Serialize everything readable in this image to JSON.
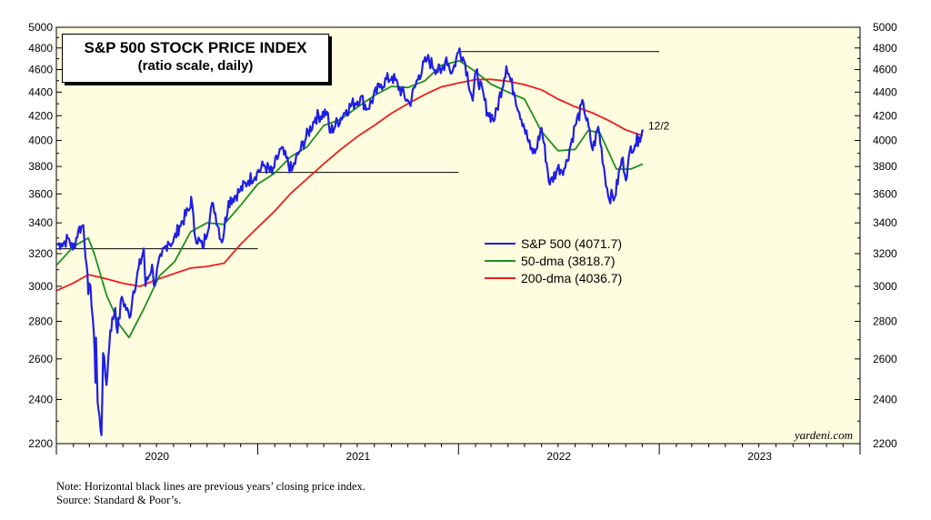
{
  "header": {
    "title": "S&P 500 STOCK PRICE INDEX",
    "subtitle": "(ratio scale, daily)"
  },
  "watermark": "yardeni.com",
  "notes": {
    "line1": "Note: Horizontal black lines are previous years’ closing price index.",
    "line2": "Source: Standard & Poor’s."
  },
  "colors": {
    "plot_background": "#fffde0",
    "sp500": "#1f1fe6",
    "dma50": "#1f8f1f",
    "dma200": "#ee1c1c",
    "reference_lines": "#000000"
  },
  "chart_data": {
    "type": "line",
    "scale": "log",
    "ylim": [
      2200,
      5000
    ],
    "yticks": [
      2200,
      2400,
      2600,
      2800,
      3000,
      3200,
      3400,
      3600,
      3800,
      4000,
      4200,
      4400,
      4600,
      4800,
      5000
    ],
    "xlim": [
      "2020-01-01",
      "2024-01-01"
    ],
    "year_labels": [
      "2020",
      "2021",
      "2022",
      "2023"
    ],
    "end_label": "12/2",
    "reference_lines": [
      {
        "value": 3230.8,
        "from": "2020-01-01",
        "to": "2021-01-01"
      },
      {
        "value": 3756.1,
        "from": "2021-01-01",
        "to": "2022-01-01"
      },
      {
        "value": 4766.2,
        "from": "2022-01-01",
        "to": "2023-01-01"
      }
    ],
    "series": [
      {
        "name": "S&P 500 (4071.7)",
        "color": "#1f1fe6",
        "points": [
          [
            "2020-01-02",
            3258
          ],
          [
            "2020-01-10",
            3265
          ],
          [
            "2020-01-24",
            3295
          ],
          [
            "2020-01-31",
            3225
          ],
          [
            "2020-02-10",
            3352
          ],
          [
            "2020-02-19",
            3386
          ],
          [
            "2020-02-25",
            3128
          ],
          [
            "2020-02-28",
            2954
          ],
          [
            "2020-03-03",
            3003
          ],
          [
            "2020-03-09",
            2747
          ],
          [
            "2020-03-12",
            2481
          ],
          [
            "2020-03-13",
            2711
          ],
          [
            "2020-03-16",
            2386
          ],
          [
            "2020-03-23",
            2237
          ],
          [
            "2020-03-26",
            2630
          ],
          [
            "2020-04-01",
            2470
          ],
          [
            "2020-04-08",
            2750
          ],
          [
            "2020-04-17",
            2875
          ],
          [
            "2020-04-21",
            2737
          ],
          [
            "2020-04-29",
            2939
          ],
          [
            "2020-05-13",
            2820
          ],
          [
            "2020-05-20",
            2972
          ],
          [
            "2020-06-08",
            3232
          ],
          [
            "2020-06-11",
            3002
          ],
          [
            "2020-06-23",
            3131
          ],
          [
            "2020-06-26",
            3009
          ],
          [
            "2020-07-10",
            3185
          ],
          [
            "2020-07-22",
            3276
          ],
          [
            "2020-07-31",
            3271
          ],
          [
            "2020-08-12",
            3380
          ],
          [
            "2020-08-31",
            3500
          ],
          [
            "2020-09-02",
            3580
          ],
          [
            "2020-09-08",
            3332
          ],
          [
            "2020-09-23",
            3237
          ],
          [
            "2020-10-12",
            3534
          ],
          [
            "2020-10-28",
            3271
          ],
          [
            "2020-11-09",
            3550
          ],
          [
            "2020-11-30",
            3622
          ],
          [
            "2020-12-15",
            3695
          ],
          [
            "2020-12-31",
            3756
          ],
          [
            "2021-01-13",
            3810
          ],
          [
            "2021-01-27",
            3750
          ],
          [
            "2021-02-12",
            3934
          ],
          [
            "2021-03-04",
            3768
          ],
          [
            "2021-03-18",
            3915
          ],
          [
            "2021-04-16",
            4185
          ],
          [
            "2021-05-07",
            4232
          ],
          [
            "2021-05-12",
            4063
          ],
          [
            "2021-06-11",
            4247
          ],
          [
            "2021-07-07",
            4358
          ],
          [
            "2021-07-19",
            4258
          ],
          [
            "2021-08-13",
            4468
          ],
          [
            "2021-09-02",
            4537
          ],
          [
            "2021-10-04",
            4300
          ],
          [
            "2021-10-21",
            4549
          ],
          [
            "2021-11-05",
            4697
          ],
          [
            "2021-11-30",
            4567
          ],
          [
            "2021-12-10",
            4712
          ],
          [
            "2021-12-20",
            4568
          ],
          [
            "2022-01-03",
            4796
          ],
          [
            "2022-01-13",
            4659
          ],
          [
            "2022-01-27",
            4326
          ],
          [
            "2022-02-02",
            4589
          ],
          [
            "2022-02-23",
            4225
          ],
          [
            "2022-03-08",
            4170
          ],
          [
            "2022-03-29",
            4631
          ],
          [
            "2022-04-12",
            4397
          ],
          [
            "2022-04-29",
            4132
          ],
          [
            "2022-05-12",
            3930
          ],
          [
            "2022-05-20",
            3901
          ],
          [
            "2022-06-01",
            4101
          ],
          [
            "2022-06-16",
            3667
          ],
          [
            "2022-06-30",
            3785
          ],
          [
            "2022-07-14",
            3790
          ],
          [
            "2022-08-01",
            4119
          ],
          [
            "2022-08-16",
            4305
          ],
          [
            "2022-09-02",
            3924
          ],
          [
            "2022-09-12",
            4110
          ],
          [
            "2022-09-30",
            3586
          ],
          [
            "2022-10-12",
            3577
          ],
          [
            "2022-10-25",
            3859
          ],
          [
            "2022-11-03",
            3720
          ],
          [
            "2022-11-10",
            3956
          ],
          [
            "2022-11-18",
            3965
          ],
          [
            "2022-11-25",
            4026
          ],
          [
            "2022-12-01",
            4076
          ],
          [
            "2022-12-02",
            4071.7
          ]
        ]
      },
      {
        "name": "50-dma (3818.7)",
        "color": "#1f8f1f",
        "points": [
          [
            "2020-01-02",
            3130
          ],
          [
            "2020-02-01",
            3245
          ],
          [
            "2020-02-28",
            3300
          ],
          [
            "2020-03-10",
            3200
          ],
          [
            "2020-04-01",
            2950
          ],
          [
            "2020-04-25",
            2780
          ],
          [
            "2020-05-12",
            2712
          ],
          [
            "2020-06-08",
            2870
          ],
          [
            "2020-07-06",
            3060
          ],
          [
            "2020-08-03",
            3150
          ],
          [
            "2020-09-01",
            3340
          ],
          [
            "2020-10-01",
            3400
          ],
          [
            "2020-11-01",
            3390
          ],
          [
            "2020-12-01",
            3520
          ],
          [
            "2021-01-01",
            3670
          ],
          [
            "2021-02-01",
            3750
          ],
          [
            "2021-03-01",
            3870
          ],
          [
            "2021-04-01",
            3950
          ],
          [
            "2021-05-01",
            4120
          ],
          [
            "2021-06-01",
            4170
          ],
          [
            "2021-07-01",
            4270
          ],
          [
            "2021-08-01",
            4370
          ],
          [
            "2021-09-01",
            4450
          ],
          [
            "2021-10-01",
            4440
          ],
          [
            "2021-11-01",
            4500
          ],
          [
            "2021-12-01",
            4640
          ],
          [
            "2022-01-03",
            4680
          ],
          [
            "2022-02-01",
            4580
          ],
          [
            "2022-03-01",
            4470
          ],
          [
            "2022-04-01",
            4400
          ],
          [
            "2022-05-01",
            4340
          ],
          [
            "2022-06-01",
            4070
          ],
          [
            "2022-07-01",
            3920
          ],
          [
            "2022-08-01",
            3930
          ],
          [
            "2022-08-25",
            4080
          ],
          [
            "2022-09-15",
            4060
          ],
          [
            "2022-10-15",
            3780
          ],
          [
            "2022-11-10",
            3780
          ],
          [
            "2022-12-02",
            3818.7
          ]
        ]
      },
      {
        "name": "200-dma (4036.7)",
        "color": "#ee1c1c",
        "points": [
          [
            "2020-01-02",
            2975
          ],
          [
            "2020-02-01",
            3020
          ],
          [
            "2020-02-28",
            3070
          ],
          [
            "2020-04-01",
            3045
          ],
          [
            "2020-05-01",
            3018
          ],
          [
            "2020-06-01",
            3000
          ],
          [
            "2020-07-01",
            3040
          ],
          [
            "2020-08-01",
            3075
          ],
          [
            "2020-09-01",
            3110
          ],
          [
            "2020-10-01",
            3120
          ],
          [
            "2020-11-01",
            3140
          ],
          [
            "2020-12-01",
            3260
          ],
          [
            "2021-01-01",
            3370
          ],
          [
            "2021-02-01",
            3480
          ],
          [
            "2021-03-01",
            3600
          ],
          [
            "2021-04-01",
            3710
          ],
          [
            "2021-05-01",
            3820
          ],
          [
            "2021-06-01",
            3930
          ],
          [
            "2021-07-01",
            4030
          ],
          [
            "2021-08-01",
            4120
          ],
          [
            "2021-09-01",
            4220
          ],
          [
            "2021-10-01",
            4300
          ],
          [
            "2021-11-01",
            4380
          ],
          [
            "2021-12-01",
            4445
          ],
          [
            "2022-01-01",
            4480
          ],
          [
            "2022-02-01",
            4510
          ],
          [
            "2022-03-01",
            4512
          ],
          [
            "2022-04-01",
            4495
          ],
          [
            "2022-05-01",
            4465
          ],
          [
            "2022-06-01",
            4420
          ],
          [
            "2022-07-01",
            4340
          ],
          [
            "2022-08-01",
            4275
          ],
          [
            "2022-09-01",
            4225
          ],
          [
            "2022-10-01",
            4160
          ],
          [
            "2022-11-01",
            4085
          ],
          [
            "2022-12-02",
            4036.7
          ]
        ]
      }
    ]
  }
}
